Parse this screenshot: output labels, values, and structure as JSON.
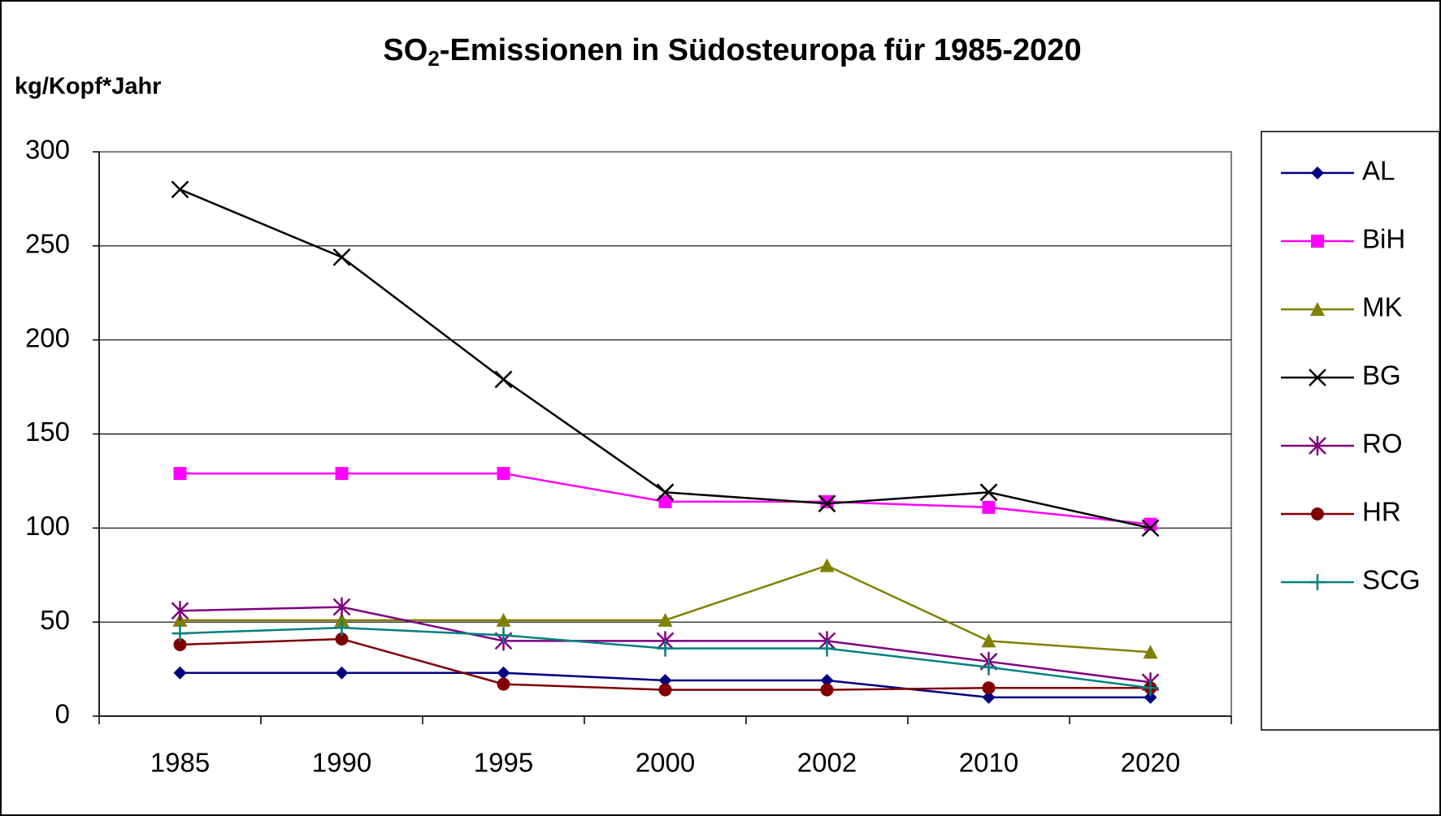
{
  "chart_data": {
    "type": "line",
    "title": {
      "main": "SO",
      "sub": "2",
      "rest": "-Emissionen in Südosteuropa für 1985-2020"
    },
    "y_label": "kg/Kopf*Jahr",
    "categories": [
      "1985",
      "1990",
      "1995",
      "2000",
      "2002",
      "2010",
      "2020"
    ],
    "ylim": [
      0,
      300
    ],
    "yticks": [
      0,
      50,
      100,
      150,
      200,
      250,
      300
    ],
    "grid": true,
    "legend": "right",
    "series": [
      {
        "name": "AL",
        "color": "#000080",
        "marker": "diamond",
        "values": [
          23,
          23,
          23,
          19,
          19,
          10,
          10
        ]
      },
      {
        "name": "BiH",
        "color": "#ff00ff",
        "marker": "square",
        "values": [
          129,
          129,
          129,
          114,
          114,
          111,
          102
        ]
      },
      {
        "name": "MK",
        "color": "#808000",
        "marker": "triangle",
        "values": [
          51,
          51,
          51,
          51,
          80,
          40,
          34
        ]
      },
      {
        "name": "BG",
        "color": "#000000",
        "marker": "x",
        "values": [
          280,
          244,
          179,
          119,
          113,
          119,
          100
        ]
      },
      {
        "name": "RO",
        "color": "#800080",
        "marker": "star",
        "values": [
          56,
          58,
          40,
          40,
          40,
          29,
          18
        ]
      },
      {
        "name": "HR",
        "color": "#800000",
        "marker": "circle",
        "values": [
          38,
          41,
          17,
          14,
          14,
          15,
          15
        ]
      },
      {
        "name": "SCG",
        "color": "#008080",
        "marker": "plus",
        "values": [
          44,
          47,
          43,
          36,
          36,
          26,
          15
        ]
      }
    ]
  }
}
